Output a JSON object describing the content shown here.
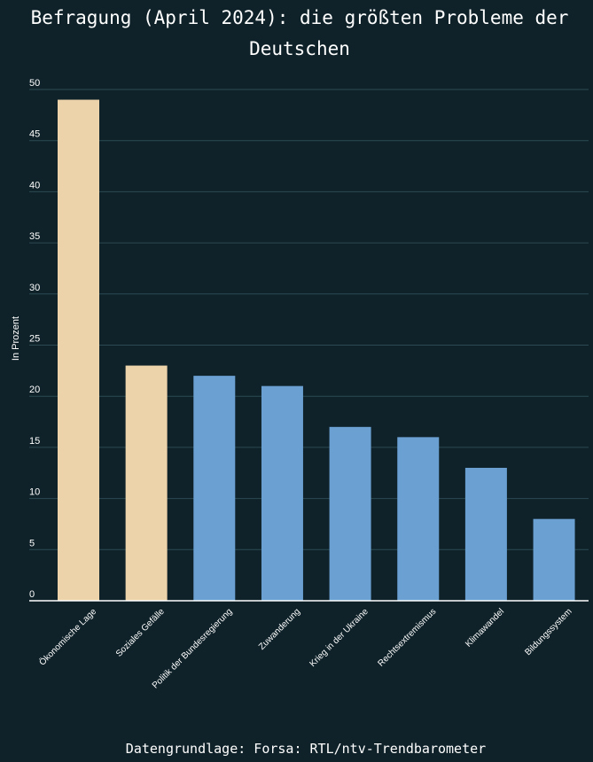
{
  "chart_data": {
    "type": "bar",
    "title_lines": [
      "Befragung (April 2024): die größten Probleme der",
      "Deutschen"
    ],
    "ylabel": "In Prozent",
    "ylim": [
      0,
      50
    ],
    "yticks": [
      "0",
      "5",
      "10",
      "15",
      "20",
      "25",
      "30",
      "35",
      "40",
      "45",
      "50"
    ],
    "grid": true,
    "categories": [
      "Ökonomische Lage",
      "Soziales Gefälle",
      "Politik der Bundesregierung",
      "Zuwanderung",
      "Krieg in der Ukraine",
      "Rechtsextremismus",
      "Klimawandel",
      "Bildungssystem"
    ],
    "values": [
      49,
      23,
      22,
      21,
      17,
      16,
      13,
      8
    ],
    "bar_colors": [
      "#edd3aa",
      "#edd3aa",
      "#6aa0d2",
      "#6aa0d2",
      "#6aa0d2",
      "#6aa0d2",
      "#6aa0d2",
      "#6aa0d2"
    ],
    "source": "Datengrundlage: Forsa: RTL/ntv-Trendbarometer"
  },
  "colors": {
    "background": "#0f2229",
    "highlight": "#edd3aa",
    "default_bar": "#6aa0d2",
    "gridline": "#2c4a52"
  }
}
